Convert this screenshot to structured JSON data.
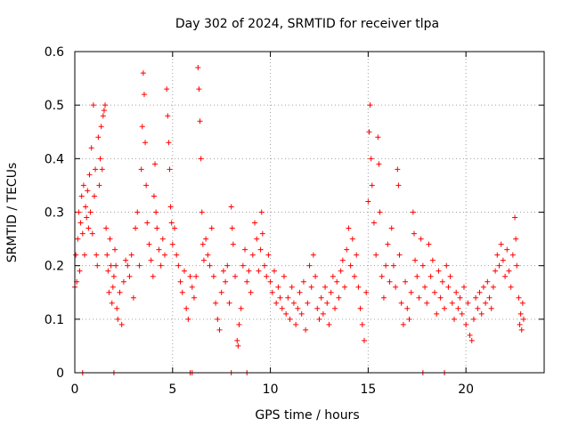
{
  "chart_data": {
    "type": "scatter",
    "title": "Day 302 of 2024, SRMTID for receiver tlpa",
    "xlabel": "GPS time / hours",
    "ylabel": "SRMTID / TECUs",
    "xlim": [
      0,
      24
    ],
    "ylim": [
      0,
      0.6
    ],
    "xticks": [
      0,
      5,
      10,
      15,
      20
    ],
    "xtick_labels": [
      "0",
      "5",
      "10",
      "15",
      "20"
    ],
    "yticks": [
      0,
      0.1,
      0.2,
      0.3,
      0.4,
      0.5,
      0.6
    ],
    "ytick_labels": [
      "0",
      "0.1",
      "0.2",
      "0.3",
      "0.4",
      "0.5",
      "0.6"
    ],
    "grid": true,
    "marker": "+",
    "color": "#ff0000",
    "points": [
      [
        0.0,
        0.16
      ],
      [
        0.05,
        0.22
      ],
      [
        0.1,
        0.17
      ],
      [
        0.15,
        0.25
      ],
      [
        0.2,
        0.3
      ],
      [
        0.25,
        0.19
      ],
      [
        0.3,
        0.28
      ],
      [
        0.35,
        0.33
      ],
      [
        0.4,
        0.26
      ],
      [
        0.45,
        0.35
      ],
      [
        0.5,
        0.22
      ],
      [
        0.55,
        0.31
      ],
      [
        0.6,
        0.29
      ],
      [
        0.65,
        0.34
      ],
      [
        0.7,
        0.27
      ],
      [
        0.75,
        0.37
      ],
      [
        0.8,
        0.3
      ],
      [
        0.85,
        0.42
      ],
      [
        0.9,
        0.26
      ],
      [
        0.95,
        0.5
      ],
      [
        1.0,
        0.33
      ],
      [
        1.05,
        0.38
      ],
      [
        1.1,
        0.22
      ],
      [
        1.15,
        0.2
      ],
      [
        1.2,
        0.44
      ],
      [
        1.25,
        0.35
      ],
      [
        1.3,
        0.4
      ],
      [
        1.35,
        0.46
      ],
      [
        1.4,
        0.38
      ],
      [
        1.45,
        0.48
      ],
      [
        1.5,
        0.49
      ],
      [
        1.55,
        0.5
      ],
      [
        1.6,
        0.27
      ],
      [
        1.65,
        0.22
      ],
      [
        1.7,
        0.19
      ],
      [
        1.75,
        0.15
      ],
      [
        1.8,
        0.25
      ],
      [
        1.85,
        0.2
      ],
      [
        1.9,
        0.13
      ],
      [
        1.95,
        0.16
      ],
      [
        2.0,
        0.18
      ],
      [
        2.05,
        0.23
      ],
      [
        2.1,
        0.2
      ],
      [
        2.15,
        0.12
      ],
      [
        2.2,
        0.1
      ],
      [
        2.3,
        0.15
      ],
      [
        2.4,
        0.09
      ],
      [
        2.5,
        0.17
      ],
      [
        2.6,
        0.21
      ],
      [
        2.7,
        0.2
      ],
      [
        2.8,
        0.18
      ],
      [
        2.9,
        0.22
      ],
      [
        3.0,
        0.14
      ],
      [
        3.1,
        0.27
      ],
      [
        3.2,
        0.3
      ],
      [
        3.3,
        0.2
      ],
      [
        3.4,
        0.38
      ],
      [
        3.45,
        0.46
      ],
      [
        3.5,
        0.56
      ],
      [
        3.55,
        0.52
      ],
      [
        3.6,
        0.43
      ],
      [
        3.65,
        0.35
      ],
      [
        3.7,
        0.28
      ],
      [
        3.8,
        0.24
      ],
      [
        3.9,
        0.21
      ],
      [
        4.0,
        0.18
      ],
      [
        4.05,
        0.33
      ],
      [
        4.1,
        0.39
      ],
      [
        4.15,
        0.3
      ],
      [
        4.2,
        0.27
      ],
      [
        4.3,
        0.23
      ],
      [
        4.4,
        0.2
      ],
      [
        4.5,
        0.25
      ],
      [
        4.6,
        0.22
      ],
      [
        4.7,
        0.53
      ],
      [
        4.75,
        0.48
      ],
      [
        4.8,
        0.43
      ],
      [
        4.85,
        0.38
      ],
      [
        4.9,
        0.31
      ],
      [
        4.95,
        0.28
      ],
      [
        5.0,
        0.24
      ],
      [
        5.1,
        0.27
      ],
      [
        5.2,
        0.22
      ],
      [
        5.3,
        0.2
      ],
      [
        5.4,
        0.17
      ],
      [
        5.5,
        0.15
      ],
      [
        5.6,
        0.19
      ],
      [
        5.7,
        0.12
      ],
      [
        5.8,
        0.1
      ],
      [
        5.9,
        0.18
      ],
      [
        6.0,
        0.16
      ],
      [
        6.1,
        0.14
      ],
      [
        6.2,
        0.18
      ],
      [
        6.3,
        0.57
      ],
      [
        6.35,
        0.53
      ],
      [
        6.4,
        0.47
      ],
      [
        6.45,
        0.4
      ],
      [
        6.5,
        0.3
      ],
      [
        6.55,
        0.24
      ],
      [
        6.6,
        0.21
      ],
      [
        6.7,
        0.25
      ],
      [
        6.8,
        0.22
      ],
      [
        6.9,
        0.2
      ],
      [
        7.0,
        0.27
      ],
      [
        7.1,
        0.18
      ],
      [
        7.2,
        0.13
      ],
      [
        7.3,
        0.1
      ],
      [
        7.4,
        0.08
      ],
      [
        7.5,
        0.15
      ],
      [
        7.6,
        0.19
      ],
      [
        7.7,
        0.17
      ],
      [
        7.8,
        0.2
      ],
      [
        7.9,
        0.13
      ],
      [
        8.0,
        0.31
      ],
      [
        8.05,
        0.27
      ],
      [
        8.1,
        0.24
      ],
      [
        8.2,
        0.18
      ],
      [
        8.3,
        0.06
      ],
      [
        8.35,
        0.05
      ],
      [
        8.4,
        0.09
      ],
      [
        8.5,
        0.12
      ],
      [
        8.6,
        0.2
      ],
      [
        8.7,
        0.23
      ],
      [
        8.8,
        0.17
      ],
      [
        8.9,
        0.19
      ],
      [
        9.0,
        0.15
      ],
      [
        9.1,
        0.22
      ],
      [
        9.2,
        0.28
      ],
      [
        9.3,
        0.25
      ],
      [
        9.4,
        0.19
      ],
      [
        9.5,
        0.23
      ],
      [
        9.55,
        0.3
      ],
      [
        9.6,
        0.26
      ],
      [
        9.7,
        0.2
      ],
      [
        9.8,
        0.18
      ],
      [
        9.9,
        0.22
      ],
      [
        10.0,
        0.17
      ],
      [
        10.1,
        0.15
      ],
      [
        10.2,
        0.19
      ],
      [
        10.3,
        0.13
      ],
      [
        10.4,
        0.16
      ],
      [
        10.5,
        0.14
      ],
      [
        10.6,
        0.12
      ],
      [
        10.7,
        0.18
      ],
      [
        10.8,
        0.11
      ],
      [
        10.9,
        0.14
      ],
      [
        11.0,
        0.1
      ],
      [
        11.1,
        0.16
      ],
      [
        11.2,
        0.13
      ],
      [
        11.3,
        0.09
      ],
      [
        11.4,
        0.12
      ],
      [
        11.5,
        0.15
      ],
      [
        11.6,
        0.11
      ],
      [
        11.7,
        0.17
      ],
      [
        11.8,
        0.08
      ],
      [
        11.9,
        0.13
      ],
      [
        12.0,
        0.2
      ],
      [
        12.1,
        0.16
      ],
      [
        12.2,
        0.22
      ],
      [
        12.3,
        0.18
      ],
      [
        12.4,
        0.12
      ],
      [
        12.5,
        0.1
      ],
      [
        12.6,
        0.14
      ],
      [
        12.7,
        0.11
      ],
      [
        12.8,
        0.16
      ],
      [
        12.9,
        0.13
      ],
      [
        13.0,
        0.09
      ],
      [
        13.1,
        0.15
      ],
      [
        13.2,
        0.18
      ],
      [
        13.3,
        0.12
      ],
      [
        13.4,
        0.17
      ],
      [
        13.5,
        0.14
      ],
      [
        13.6,
        0.19
      ],
      [
        13.7,
        0.21
      ],
      [
        13.8,
        0.16
      ],
      [
        13.9,
        0.23
      ],
      [
        14.0,
        0.27
      ],
      [
        14.1,
        0.2
      ],
      [
        14.2,
        0.25
      ],
      [
        14.3,
        0.18
      ],
      [
        14.4,
        0.22
      ],
      [
        14.5,
        0.16
      ],
      [
        14.6,
        0.12
      ],
      [
        14.7,
        0.09
      ],
      [
        14.8,
        0.06
      ],
      [
        14.9,
        0.15
      ],
      [
        15.0,
        0.32
      ],
      [
        15.05,
        0.45
      ],
      [
        15.1,
        0.5
      ],
      [
        15.15,
        0.4
      ],
      [
        15.2,
        0.35
      ],
      [
        15.3,
        0.28
      ],
      [
        15.4,
        0.22
      ],
      [
        15.5,
        0.44
      ],
      [
        15.55,
        0.39
      ],
      [
        15.6,
        0.3
      ],
      [
        15.7,
        0.18
      ],
      [
        15.8,
        0.14
      ],
      [
        15.9,
        0.2
      ],
      [
        16.0,
        0.24
      ],
      [
        16.1,
        0.17
      ],
      [
        16.2,
        0.27
      ],
      [
        16.3,
        0.2
      ],
      [
        16.4,
        0.16
      ],
      [
        16.5,
        0.38
      ],
      [
        16.55,
        0.35
      ],
      [
        16.6,
        0.22
      ],
      [
        16.7,
        0.13
      ],
      [
        16.8,
        0.09
      ],
      [
        16.9,
        0.17
      ],
      [
        17.0,
        0.12
      ],
      [
        17.1,
        0.1
      ],
      [
        17.2,
        0.15
      ],
      [
        17.3,
        0.3
      ],
      [
        17.35,
        0.26
      ],
      [
        17.4,
        0.21
      ],
      [
        17.5,
        0.18
      ],
      [
        17.6,
        0.14
      ],
      [
        17.7,
        0.25
      ],
      [
        17.8,
        0.2
      ],
      [
        17.9,
        0.16
      ],
      [
        18.0,
        0.13
      ],
      [
        18.1,
        0.24
      ],
      [
        18.2,
        0.18
      ],
      [
        18.3,
        0.21
      ],
      [
        18.4,
        0.15
      ],
      [
        18.5,
        0.11
      ],
      [
        18.6,
        0.19
      ],
      [
        18.7,
        0.14
      ],
      [
        18.8,
        0.17
      ],
      [
        18.9,
        0.12
      ],
      [
        19.0,
        0.2
      ],
      [
        19.1,
        0.16
      ],
      [
        19.2,
        0.18
      ],
      [
        19.3,
        0.13
      ],
      [
        19.4,
        0.1
      ],
      [
        19.5,
        0.15
      ],
      [
        19.6,
        0.12
      ],
      [
        19.7,
        0.14
      ],
      [
        19.8,
        0.11
      ],
      [
        19.9,
        0.16
      ],
      [
        20.0,
        0.09
      ],
      [
        20.1,
        0.13
      ],
      [
        20.2,
        0.07
      ],
      [
        20.3,
        0.06
      ],
      [
        20.4,
        0.1
      ],
      [
        20.5,
        0.14
      ],
      [
        20.6,
        0.12
      ],
      [
        20.7,
        0.15
      ],
      [
        20.8,
        0.11
      ],
      [
        20.9,
        0.16
      ],
      [
        21.0,
        0.13
      ],
      [
        21.1,
        0.17
      ],
      [
        21.2,
        0.14
      ],
      [
        21.3,
        0.12
      ],
      [
        21.4,
        0.16
      ],
      [
        21.5,
        0.19
      ],
      [
        21.6,
        0.22
      ],
      [
        21.7,
        0.2
      ],
      [
        21.8,
        0.24
      ],
      [
        21.9,
        0.21
      ],
      [
        22.0,
        0.18
      ],
      [
        22.1,
        0.23
      ],
      [
        22.2,
        0.19
      ],
      [
        22.3,
        0.16
      ],
      [
        22.4,
        0.22
      ],
      [
        22.5,
        0.29
      ],
      [
        22.55,
        0.25
      ],
      [
        22.6,
        0.2
      ],
      [
        22.7,
        0.14
      ],
      [
        22.75,
        0.09
      ],
      [
        22.8,
        0.11
      ],
      [
        22.85,
        0.08
      ],
      [
        22.9,
        0.13
      ],
      [
        22.95,
        0.1
      ],
      [
        0.4,
        0.0
      ],
      [
        2.0,
        0.0
      ],
      [
        5.9,
        0.0
      ],
      [
        6.0,
        0.0
      ],
      [
        8.0,
        0.0
      ],
      [
        8.8,
        0.0
      ],
      [
        17.8,
        0.0
      ],
      [
        18.9,
        0.0
      ]
    ]
  }
}
